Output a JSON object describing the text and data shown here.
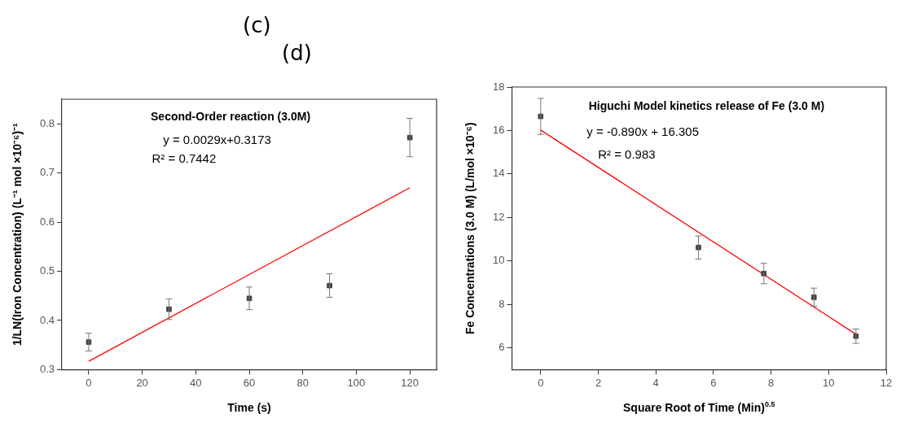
{
  "chart_data": [
    {
      "type": "scatter",
      "title": "Second-Order reaction (3.0M)",
      "xlabel": "Time (s)",
      "ylabel": "1/LN(Iron Concentration) (L⁻¹ mol ×10⁻⁶)⁻¹",
      "annotations": [
        "(c)",
        "y = 0.0029x+0.3173",
        "R² = 0.7442"
      ],
      "x": [
        0,
        30,
        60,
        90,
        120
      ],
      "series": [
        {
          "color": "#444444",
          "marker": "square",
          "values": [
            0.356,
            0.423,
            0.445,
            0.471,
            0.772
          ],
          "errors": [
            0.018,
            0.021,
            0.023,
            0.024,
            0.039
          ]
        },
        {
          "type": "line",
          "color": "#ff0000",
          "x": [
            0,
            120
          ],
          "values": [
            0.317,
            0.67
          ]
        }
      ],
      "xlim": [
        -10,
        130
      ],
      "xticks": [
        0,
        20,
        40,
        60,
        80,
        100,
        120
      ],
      "ylim": [
        0.3,
        0.85
      ],
      "yticks": [
        0.3,
        0.4,
        0.5,
        0.6,
        0.7,
        0.8
      ],
      "grid": false,
      "legend": false
    },
    {
      "type": "scatter",
      "title": "Higuchi Model kinetics release of Fe (3.0 M)",
      "xlabel": "Square Root of Time (Min)$^{0.5}$",
      "ylabel": "Fe Concentrations (3.0 M) (L/mol ×10⁻⁶)",
      "annotations": [
        "(d)",
        "y = -0.890x + 16.305",
        "R² = 0.983"
      ],
      "x": [
        0,
        5.48,
        7.75,
        9.49,
        10.95
      ],
      "series": [
        {
          "color": "#444444",
          "marker": "square",
          "values": [
            16.65,
            10.62,
            9.42,
            8.33,
            6.54
          ],
          "errors": [
            0.83,
            0.53,
            0.47,
            0.42,
            0.33
          ]
        },
        {
          "type": "line",
          "color": "#ff0000",
          "x": [
            0,
            10.95
          ],
          "values": [
            16.02,
            6.63
          ]
        }
      ],
      "xlim": [
        -1,
        12
      ],
      "xticks": [
        0,
        2,
        4,
        6,
        8,
        10,
        12
      ],
      "ylim": [
        5,
        18
      ],
      "yticks": [
        6,
        8,
        10,
        12,
        14,
        16,
        18
      ],
      "grid": false,
      "legend": false
    }
  ]
}
